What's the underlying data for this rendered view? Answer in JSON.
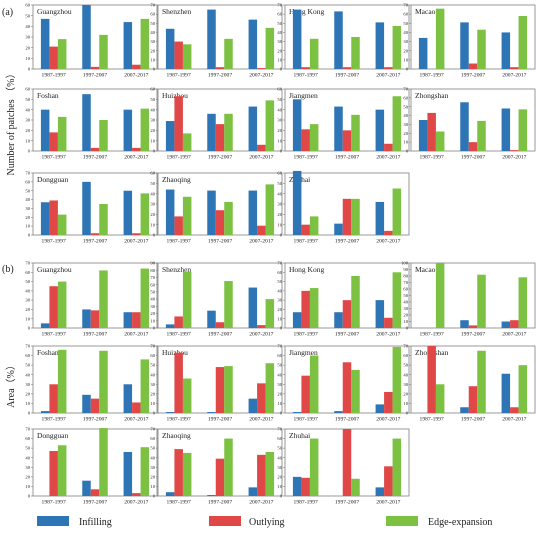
{
  "colors": {
    "infilling": "#2E75B6",
    "outlying": "#E04848",
    "edge": "#7DC142",
    "frame": "#7f7f7f"
  },
  "chart_data": {
    "type": "bar",
    "categories": [
      "1987-1997",
      "1997-2007",
      "2007-2017"
    ],
    "legend": [
      "Infilling",
      "Outlying",
      "Edge-expansion"
    ],
    "panels": [
      {
        "label": "(a)",
        "ylabel": "Number of patches （%）",
        "charts": [
          {
            "city": "Guangzhou",
            "ylim": [
              0,
              60
            ],
            "ticks": [
              0,
              10,
              20,
              30,
              40,
              50,
              60
            ],
            "series": {
              "infilling": [
                47,
                60,
                44
              ],
              "outlying": [
                21,
                2,
                4
              ],
              "edge": [
                28,
                32,
                47
              ]
            }
          },
          {
            "city": "Shenzhen",
            "ylim": [
              0,
              70
            ],
            "ticks": [
              0,
              10,
              20,
              30,
              40,
              50,
              60,
              70
            ],
            "series": {
              "infilling": [
                44,
                65,
                54
              ],
              "outlying": [
                30,
                2,
                1
              ],
              "edge": [
                27,
                33,
                45
              ]
            }
          },
          {
            "city": "Hong Kong",
            "ylim": [
              0,
              70
            ],
            "ticks": [
              0,
              10,
              20,
              30,
              40,
              50,
              60,
              70
            ],
            "series": {
              "infilling": [
                65,
                63,
                51
              ],
              "outlying": [
                2,
                2,
                2
              ],
              "edge": [
                33,
                35,
                47
              ]
            }
          },
          {
            "city": "Macao",
            "ylim": [
              0,
              70
            ],
            "ticks": [
              0,
              10,
              20,
              30,
              40,
              50,
              60,
              70
            ],
            "series": {
              "infilling": [
                34,
                51,
                40
              ],
              "outlying": [
                0,
                6,
                2
              ],
              "edge": [
                66,
                43,
                58
              ]
            }
          },
          {
            "city": "Foshan",
            "ylim": [
              0,
              60
            ],
            "ticks": [
              0,
              10,
              20,
              30,
              40,
              50,
              60
            ],
            "series": {
              "infilling": [
                40,
                55,
                40
              ],
              "outlying": [
                18,
                3,
                3
              ],
              "edge": [
                33,
                30,
                41
              ]
            }
          },
          {
            "city": "Huizhou",
            "ylim": [
              0,
              60
            ],
            "ticks": [
              0,
              10,
              20,
              30,
              40,
              50,
              60
            ],
            "series": {
              "infilling": [
                29,
                36,
                43
              ],
              "outlying": [
                53,
                26,
                6
              ],
              "edge": [
                17,
                36,
                49
              ]
            }
          },
          {
            "city": "Jiangmen",
            "ylim": [
              0,
              60
            ],
            "ticks": [
              0,
              10,
              20,
              30,
              40,
              50,
              60
            ],
            "series": {
              "infilling": [
                50,
                43,
                40
              ],
              "outlying": [
                21,
                20,
                7
              ],
              "edge": [
                26,
                35,
                53
              ]
            }
          },
          {
            "city": "Zhongshan",
            "ylim": [
              0,
              70
            ],
            "ticks": [
              0,
              10,
              20,
              30,
              40,
              50,
              60,
              70
            ],
            "series": {
              "infilling": [
                35,
                55,
                48
              ],
              "outlying": [
                43,
                10,
                1
              ],
              "edge": [
                22,
                34,
                47
              ]
            }
          },
          {
            "city": "Dongguan",
            "ylim": [
              0,
              70
            ],
            "ticks": [
              0,
              10,
              20,
              30,
              40,
              50,
              60,
              70
            ],
            "series": {
              "infilling": [
                37,
                60,
                50
              ],
              "outlying": [
                39,
                2,
                2
              ],
              "edge": [
                23,
                35,
                47
              ]
            }
          },
          {
            "city": "Zhaoqing",
            "ylim": [
              0,
              60
            ],
            "ticks": [
              0,
              10,
              20,
              30,
              40,
              50,
              60
            ],
            "series": {
              "infilling": [
                44,
                43,
                43
              ],
              "outlying": [
                18,
                24,
                9
              ],
              "edge": [
                37,
                32,
                49
              ]
            }
          },
          {
            "city": "Zhuhai",
            "ylim": [
              0,
              60
            ],
            "ticks": [
              0,
              10,
              20,
              30,
              40,
              50,
              60
            ],
            "series": {
              "infilling": [
                62,
                11,
                32
              ],
              "outlying": [
                10,
                35,
                4
              ],
              "edge": [
                18,
                35,
                45
              ]
            }
          }
        ]
      },
      {
        "label": "(b)",
        "ylabel": "Area（%）",
        "charts": [
          {
            "city": "Guangzhou",
            "ylim": [
              0,
              70
            ],
            "ticks": [
              0,
              10,
              20,
              30,
              40,
              50,
              60,
              70
            ],
            "series": {
              "infilling": [
                5,
                20,
                17
              ],
              "outlying": [
                45,
                19,
                17
              ],
              "edge": [
                50,
                62,
                64
              ]
            }
          },
          {
            "city": "Shenzhen",
            "ylim": [
              0,
              90
            ],
            "ticks": [
              0,
              10,
              20,
              30,
              40,
              50,
              60,
              70,
              80,
              90
            ],
            "series": {
              "infilling": [
                5,
                24,
                56
              ],
              "outlying": [
                16,
                8,
                4
              ],
              "edge": [
                78,
                65,
                40
              ]
            }
          },
          {
            "city": "Hong Kong",
            "ylim": [
              0,
              70
            ],
            "ticks": [
              0,
              10,
              20,
              30,
              40,
              50,
              60,
              70
            ],
            "series": {
              "infilling": [
                17,
                17,
                30
              ],
              "outlying": [
                40,
                30,
                11
              ],
              "edge": [
                43,
                56,
                60
              ]
            }
          },
          {
            "city": "Macao",
            "ylim": [
              0,
              100
            ],
            "ticks": [
              0,
              10,
              20,
              30,
              40,
              50,
              60,
              70,
              80,
              90,
              100
            ],
            "series": {
              "infilling": [
                0,
                12,
                10
              ],
              "outlying": [
                0,
                4,
                12
              ],
              "edge": [
                100,
                82,
                78
              ]
            }
          },
          {
            "city": "Foshan",
            "ylim": [
              0,
              70
            ],
            "ticks": [
              0,
              10,
              20,
              30,
              40,
              50,
              60,
              70
            ],
            "series": {
              "infilling": [
                2,
                19,
                30
              ],
              "outlying": [
                30,
                15,
                11
              ],
              "edge": [
                66,
                65,
                56
              ]
            }
          },
          {
            "city": "Huizhou",
            "ylim": [
              0,
              70
            ],
            "ticks": [
              0,
              10,
              20,
              30,
              40,
              50,
              60,
              70
            ],
            "series": {
              "infilling": [
                1,
                1,
                15
              ],
              "outlying": [
                63,
                48,
                31
              ],
              "edge": [
                36,
                49,
                52
              ]
            }
          },
          {
            "city": "Jiangmen",
            "ylim": [
              0,
              70
            ],
            "ticks": [
              0,
              10,
              20,
              30,
              40,
              50,
              60,
              70
            ],
            "series": {
              "infilling": [
                1,
                2,
                9
              ],
              "outlying": [
                39,
                53,
                22
              ],
              "edge": [
                60,
                45,
                69
              ]
            }
          },
          {
            "city": "Zhongshan",
            "ylim": [
              0,
              70
            ],
            "ticks": [
              0,
              10,
              20,
              30,
              40,
              50,
              60,
              70
            ],
            "series": {
              "infilling": [
                0,
                6,
                41
              ],
              "outlying": [
                70,
                28,
                6
              ],
              "edge": [
                30,
                65,
                50
              ]
            }
          },
          {
            "city": "Dongguan",
            "ylim": [
              0,
              70
            ],
            "ticks": [
              0,
              10,
              20,
              30,
              40,
              50,
              60,
              70
            ],
            "series": {
              "infilling": [
                0,
                16,
                46
              ],
              "outlying": [
                47,
                7,
                3
              ],
              "edge": [
                53,
                71,
                51
              ]
            }
          },
          {
            "city": "Zhaoqing",
            "ylim": [
              0,
              70
            ],
            "ticks": [
              0,
              10,
              20,
              30,
              40,
              50,
              60,
              70
            ],
            "series": {
              "infilling": [
                4,
                1,
                9
              ],
              "outlying": [
                49,
                39,
                43
              ],
              "edge": [
                45,
                60,
                46
              ]
            }
          },
          {
            "city": "Zhuhai",
            "ylim": [
              0,
              70
            ],
            "ticks": [
              0,
              10,
              20,
              30,
              40,
              50,
              60,
              70
            ],
            "series": {
              "infilling": [
                20,
                0,
                9
              ],
              "outlying": [
                19,
                70,
                31
              ],
              "edge": [
                60,
                18,
                60
              ]
            }
          }
        ]
      }
    ]
  }
}
